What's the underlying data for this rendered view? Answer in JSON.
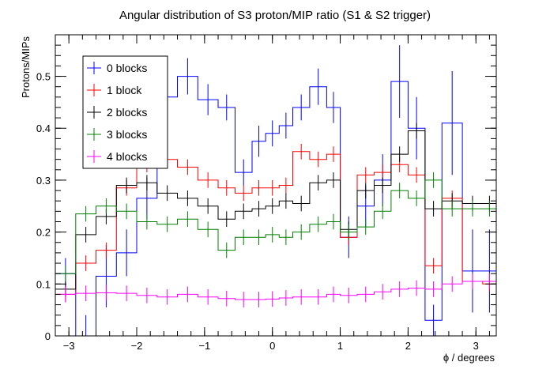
{
  "chart_data": {
    "type": "line",
    "title": "Angular distribution of S3 proton/MIP ratio (S1 & S2 trigger)",
    "xlabel": "ϕ / degrees",
    "ylabel": "Protons/MIPs",
    "xlim": [
      -3.2,
      3.3
    ],
    "ylim": [
      0,
      0.58
    ],
    "bin_edges": [
      -3.2,
      -2.9,
      -2.6,
      -2.3,
      -2.0,
      -1.7,
      -1.4,
      -1.1,
      -0.8,
      -0.55,
      -0.3,
      -0.1,
      0.1,
      0.3,
      0.55,
      0.8,
      1.0,
      1.25,
      1.5,
      1.75,
      2.0,
      2.25,
      2.5,
      2.8,
      3.1,
      3.3
    ],
    "x_ticks": [
      -3,
      -2,
      -1,
      0,
      1,
      2,
      3
    ],
    "x_tick_labels": [
      "−3",
      "−2",
      "−1",
      "0",
      "1",
      "2",
      "3"
    ],
    "y_ticks": [
      0,
      0.1,
      0.2,
      0.3,
      0.4,
      0.5
    ],
    "y_tick_labels": [
      "0",
      "0.1",
      "0.2",
      "0.3",
      "0.4",
      "0.5"
    ],
    "grid": false,
    "legend_position": "top-left",
    "series": [
      {
        "name": "0 blocks",
        "color": "#0000ff",
        "values": [
          0.12,
          0.0,
          0.115,
          0.16,
          0.265,
          0.46,
          0.5,
          0.455,
          0.44,
          0.315,
          0.375,
          0.39,
          0.405,
          0.44,
          0.48,
          0.44,
          0.19,
          0.25,
          0.3,
          0.49,
          0.4,
          0.03,
          0.41,
          0.125,
          0.125
        ],
        "errors": [
          0.03,
          0.04,
          0.06,
          0.045,
          0.04,
          0.04,
          0.035,
          0.03,
          0.025,
          0.025,
          0.03,
          0.025,
          0.025,
          0.025,
          0.035,
          0.03,
          0.04,
          0.04,
          0.05,
          0.07,
          0.06,
          0.03,
          0.1,
          0.08,
          0.08
        ]
      },
      {
        "name": "1 block",
        "color": "#ff0000",
        "values": [
          0.08,
          0.14,
          0.165,
          0.285,
          0.33,
          0.34,
          0.325,
          0.3,
          0.285,
          0.275,
          0.285,
          0.285,
          0.29,
          0.355,
          0.34,
          0.35,
          0.19,
          0.31,
          0.315,
          0.33,
          0.31,
          0.135,
          0.265,
          0.105,
          0.1
        ]
      },
      {
        "name": "2 blocks",
        "color": "#000000",
        "values": [
          0.09,
          0.195,
          0.23,
          0.29,
          0.295,
          0.275,
          0.265,
          0.25,
          0.225,
          0.24,
          0.245,
          0.25,
          0.26,
          0.255,
          0.295,
          0.3,
          0.205,
          0.28,
          0.29,
          0.35,
          0.395,
          0.245,
          0.26,
          0.255,
          0.255
        ]
      },
      {
        "name": "3 blocks",
        "color": "#008000",
        "values": [
          0.12,
          0.235,
          0.25,
          0.24,
          0.22,
          0.215,
          0.225,
          0.205,
          0.165,
          0.19,
          0.19,
          0.195,
          0.19,
          0.2,
          0.215,
          0.22,
          0.2,
          0.21,
          0.24,
          0.28,
          0.265,
          0.3,
          0.245,
          0.245,
          0.245
        ]
      },
      {
        "name": "4 blocks",
        "color": "#ff00ff",
        "values": [
          0.08,
          0.082,
          0.083,
          0.082,
          0.078,
          0.075,
          0.08,
          0.075,
          0.072,
          0.07,
          0.07,
          0.071,
          0.073,
          0.075,
          0.075,
          0.08,
          0.078,
          0.08,
          0.085,
          0.09,
          0.092,
          0.09,
          0.1,
          0.105,
          0.105
        ]
      }
    ]
  }
}
